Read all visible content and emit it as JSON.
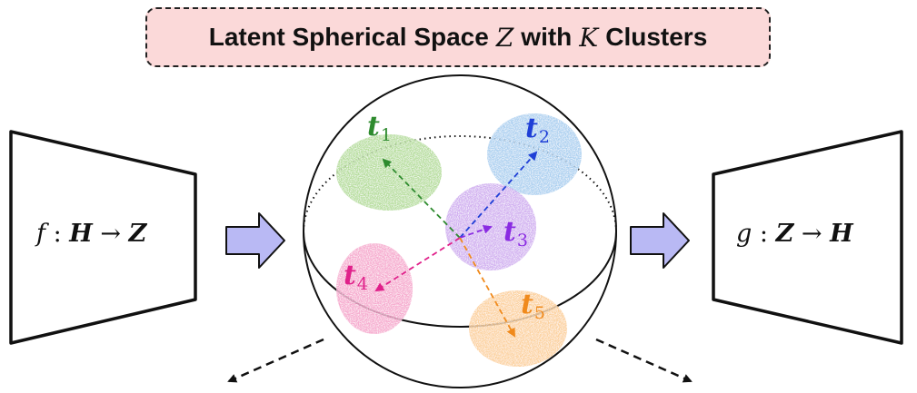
{
  "title": {
    "prefix": "Latent Spherical Space",
    "space_symbol": "Z",
    "middle": "with",
    "k_symbol": "K",
    "suffix": "Clusters"
  },
  "encoder": {
    "fn": "f",
    "colon": ":",
    "from": "H",
    "arrow": "→",
    "to": "Z"
  },
  "decoder": {
    "fn": "g",
    "colon": ":",
    "from": "Z",
    "arrow": "→",
    "to": "H"
  },
  "clusters": [
    {
      "symbol": "t",
      "index": "1",
      "color": "#2e8b2e",
      "fill": "#a9d889"
    },
    {
      "symbol": "t",
      "index": "2",
      "color": "#1f3fd6",
      "fill": "#9cc8ee"
    },
    {
      "symbol": "t",
      "index": "3",
      "color": "#8a2be2",
      "fill": "#c9a0ee"
    },
    {
      "symbol": "t",
      "index": "4",
      "color": "#e0208a",
      "fill": "#f59ac6"
    },
    {
      "symbol": "t",
      "index": "5",
      "color": "#f08a1c",
      "fill": "#fcc98a"
    }
  ],
  "colors": {
    "block_arrow_fill": "#b9b9f4",
    "title_bg": "#fbd9d9",
    "outline": "#111111"
  }
}
